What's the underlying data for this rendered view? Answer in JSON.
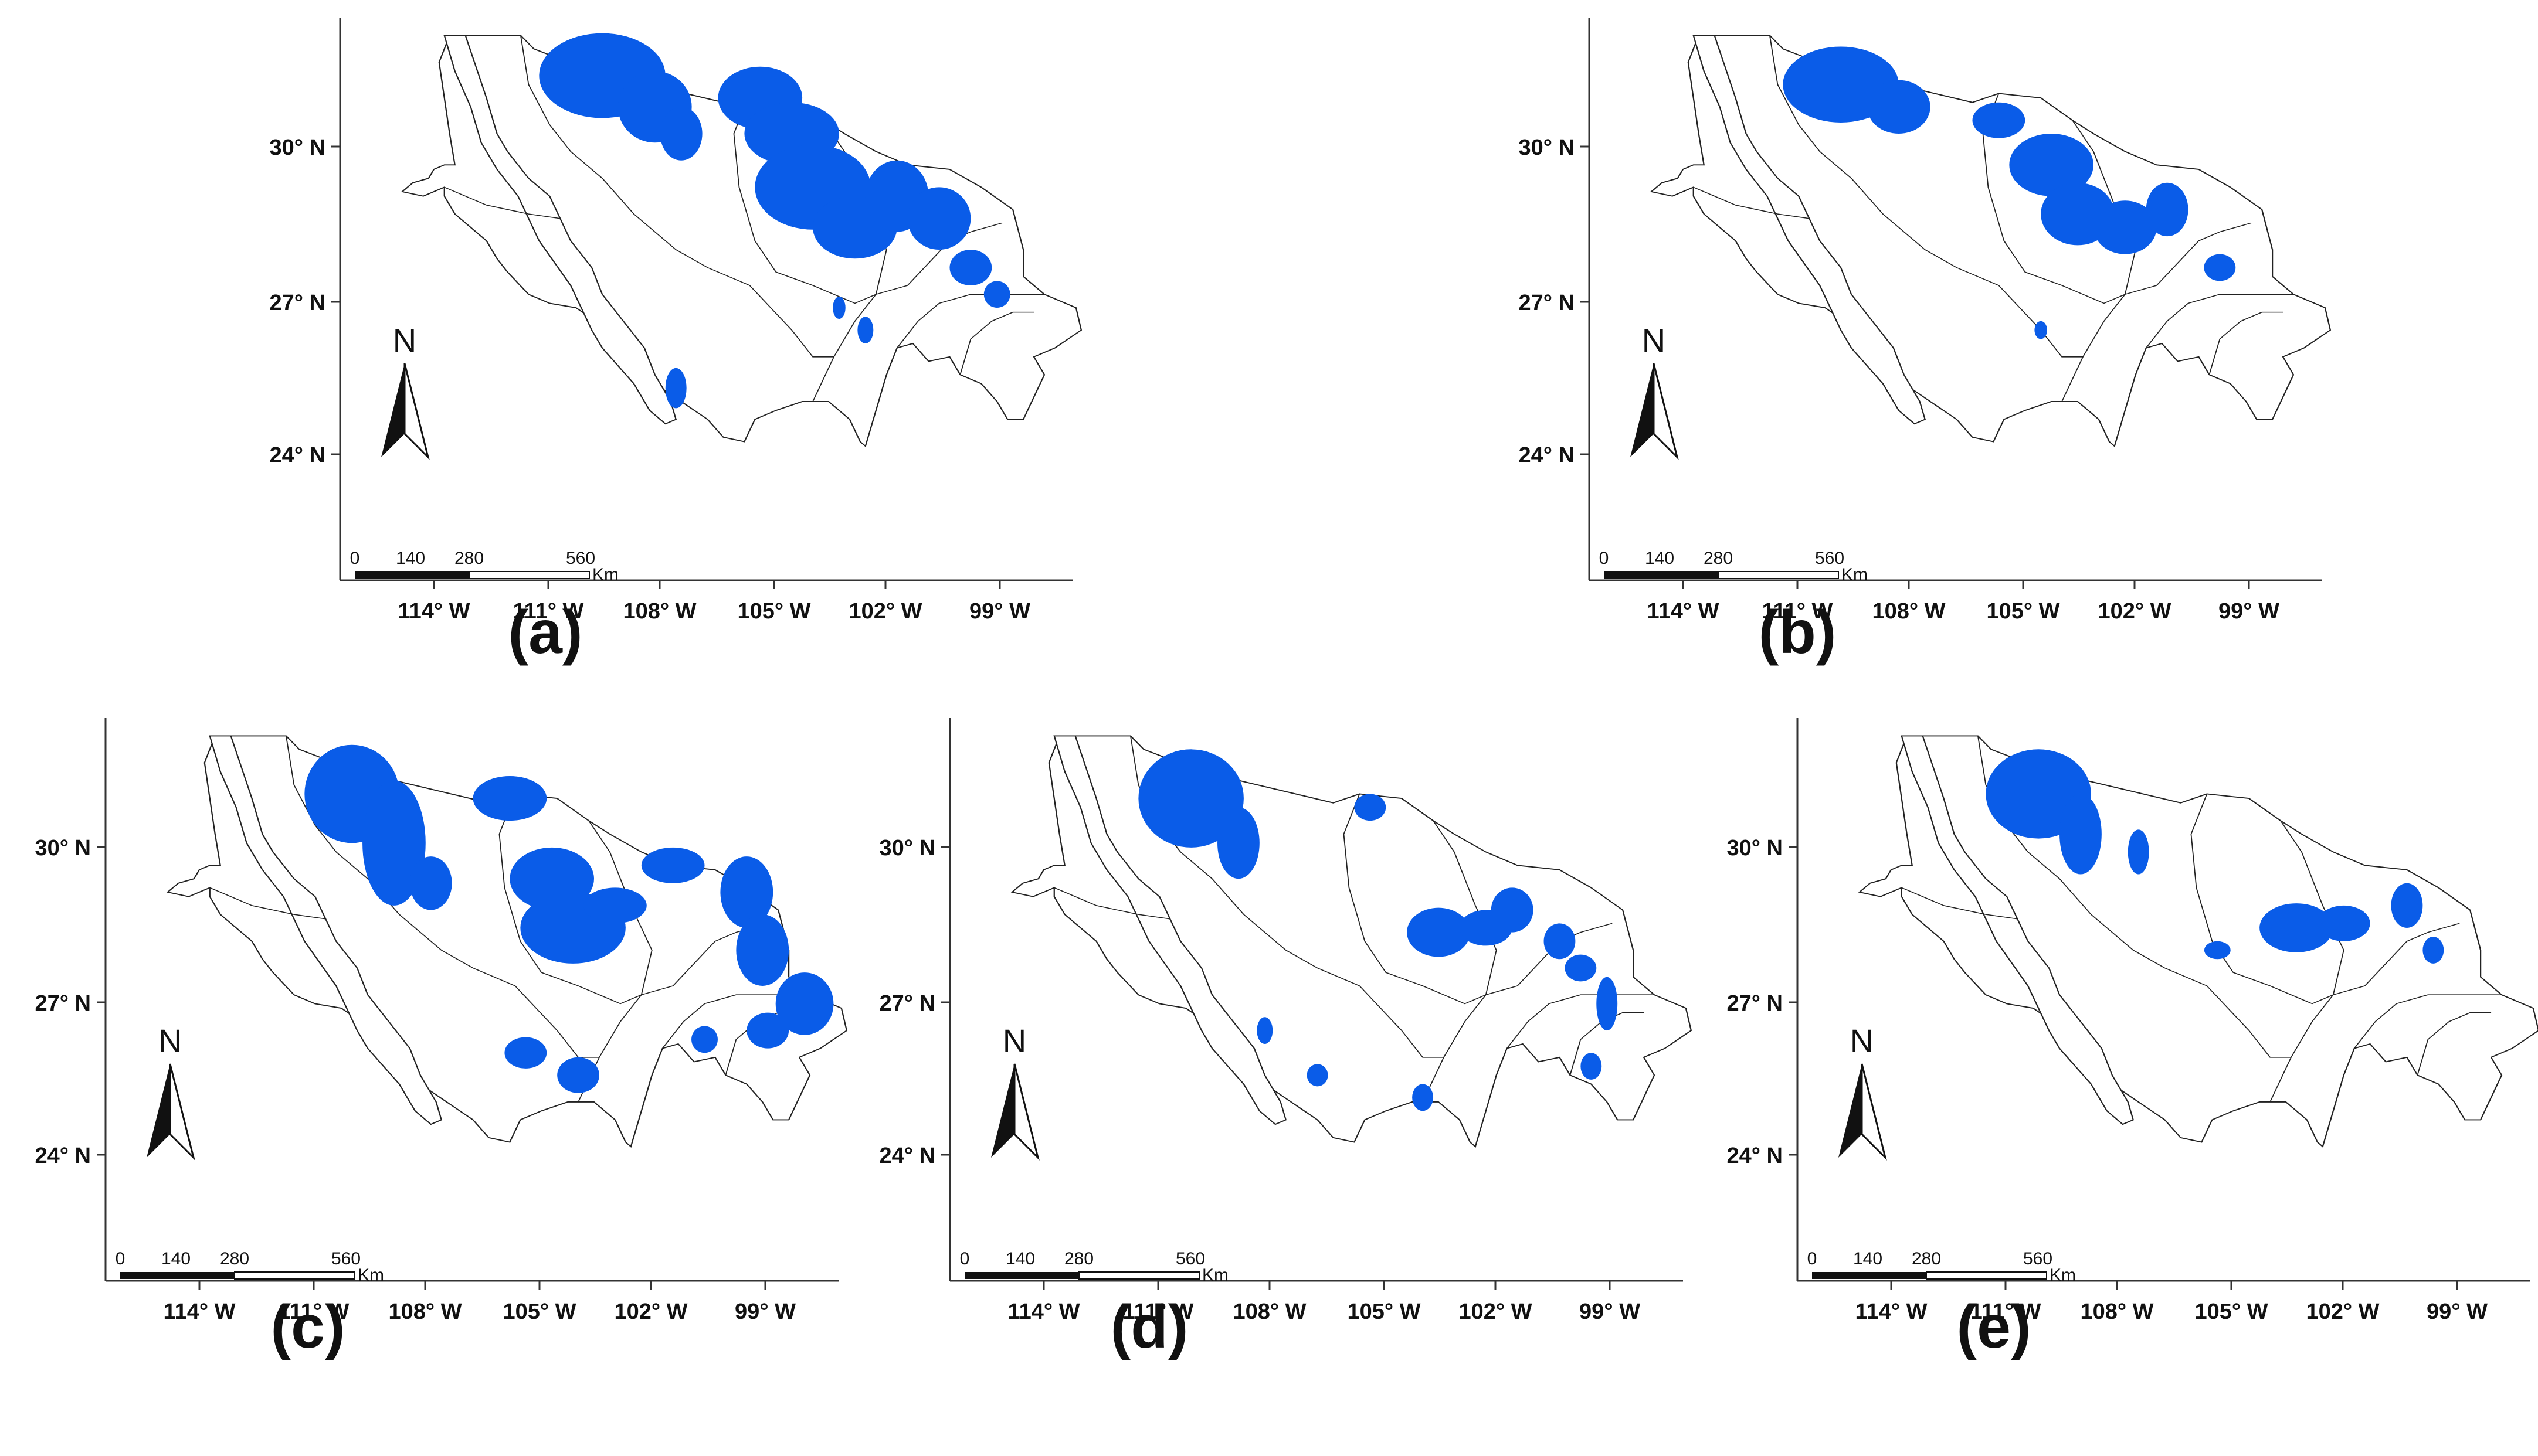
{
  "figure": {
    "panels": [
      {
        "caption": "(a)",
        "variant": 0
      },
      {
        "caption": "(b)",
        "variant": 1
      },
      {
        "caption": "(c)",
        "variant": 2
      },
      {
        "caption": "(d)",
        "variant": 3
      },
      {
        "caption": "(e)",
        "variant": 4
      }
    ],
    "lat_labels": [
      "30° N",
      "27° N",
      "24° N"
    ],
    "lon_labels": [
      "114° W",
      "111° W",
      "108° W",
      "105° W",
      "102° W",
      "99° W"
    ],
    "north_arrow_label": "N",
    "scale_bar": {
      "ticks": [
        "0",
        "140",
        "280",
        "560"
      ],
      "unit": "Km"
    },
    "colors": {
      "suitable_area": "#0a5ce8",
      "boundary": "#222222",
      "background": "#ffffff"
    }
  }
}
